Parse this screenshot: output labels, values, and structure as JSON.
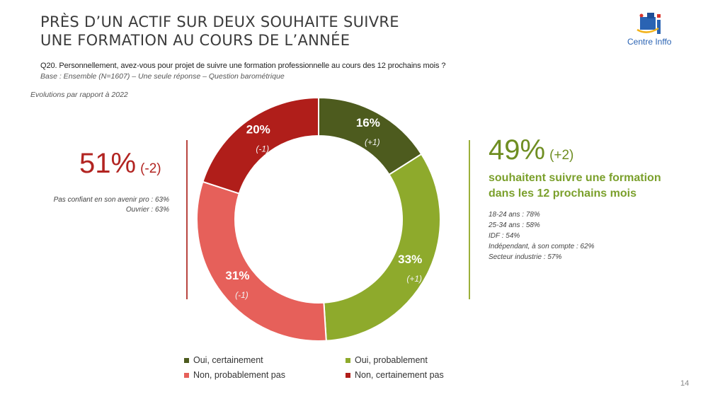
{
  "slide": {
    "title_line1": "PRÈS D’UN ACTIF SUR DEUX SOUHAITE SUIVRE",
    "title_line2": "UNE FORMATION AU COURS DE L’ANNÉE",
    "logo_text": "Centre Inffo",
    "question": "Q20. Personnellement, avez-vous pour projet de suivre une formation professionnelle au cours des 12 prochains mois ?",
    "base": "Base : Ensemble (N=1607) – Une seule réponse – Question barométrique",
    "evolutions": "Evolutions par rapport à 2022",
    "page_number": "14",
    "left": {
      "pct": "51%",
      "change": "(-2)",
      "notes": [
        "Pas confiant en son avenir pro : 63%",
        "Ouvrier : 63%"
      ]
    },
    "right": {
      "pct": "49%",
      "change": "(+2)",
      "sub_line1": "souhaitent suivre une formation",
      "sub_line2": "dans les 12 prochains mois",
      "notes": [
        "18-24 ans : 78%",
        "25-34 ans : 58%",
        "IDF : 54%",
        "Indépendant, à son compte : 62%",
        "Secteur industrie : 57%"
      ]
    }
  },
  "colors": {
    "oui_certainement": "#4d5b1e",
    "oui_probablement": "#8eaa2c",
    "non_probablement_pas": "#e6605a",
    "non_certainement_pas": "#b01e1a"
  },
  "chart_data": {
    "type": "pie",
    "donut": true,
    "categories": [
      "Oui, certainement",
      "Oui, probablement",
      "Non, probablement pas",
      "Non, certainement pas"
    ],
    "values": [
      16,
      33,
      31,
      20
    ],
    "labels": [
      "16%",
      "33%",
      "31%",
      "20%"
    ],
    "changes": [
      "(+1)",
      "(+1)",
      "(-1)",
      "(-1)"
    ],
    "legend": [
      "Oui, certainement",
      "Oui, probablement",
      "Non, probablement pas",
      "Non, certainement pas"
    ]
  }
}
